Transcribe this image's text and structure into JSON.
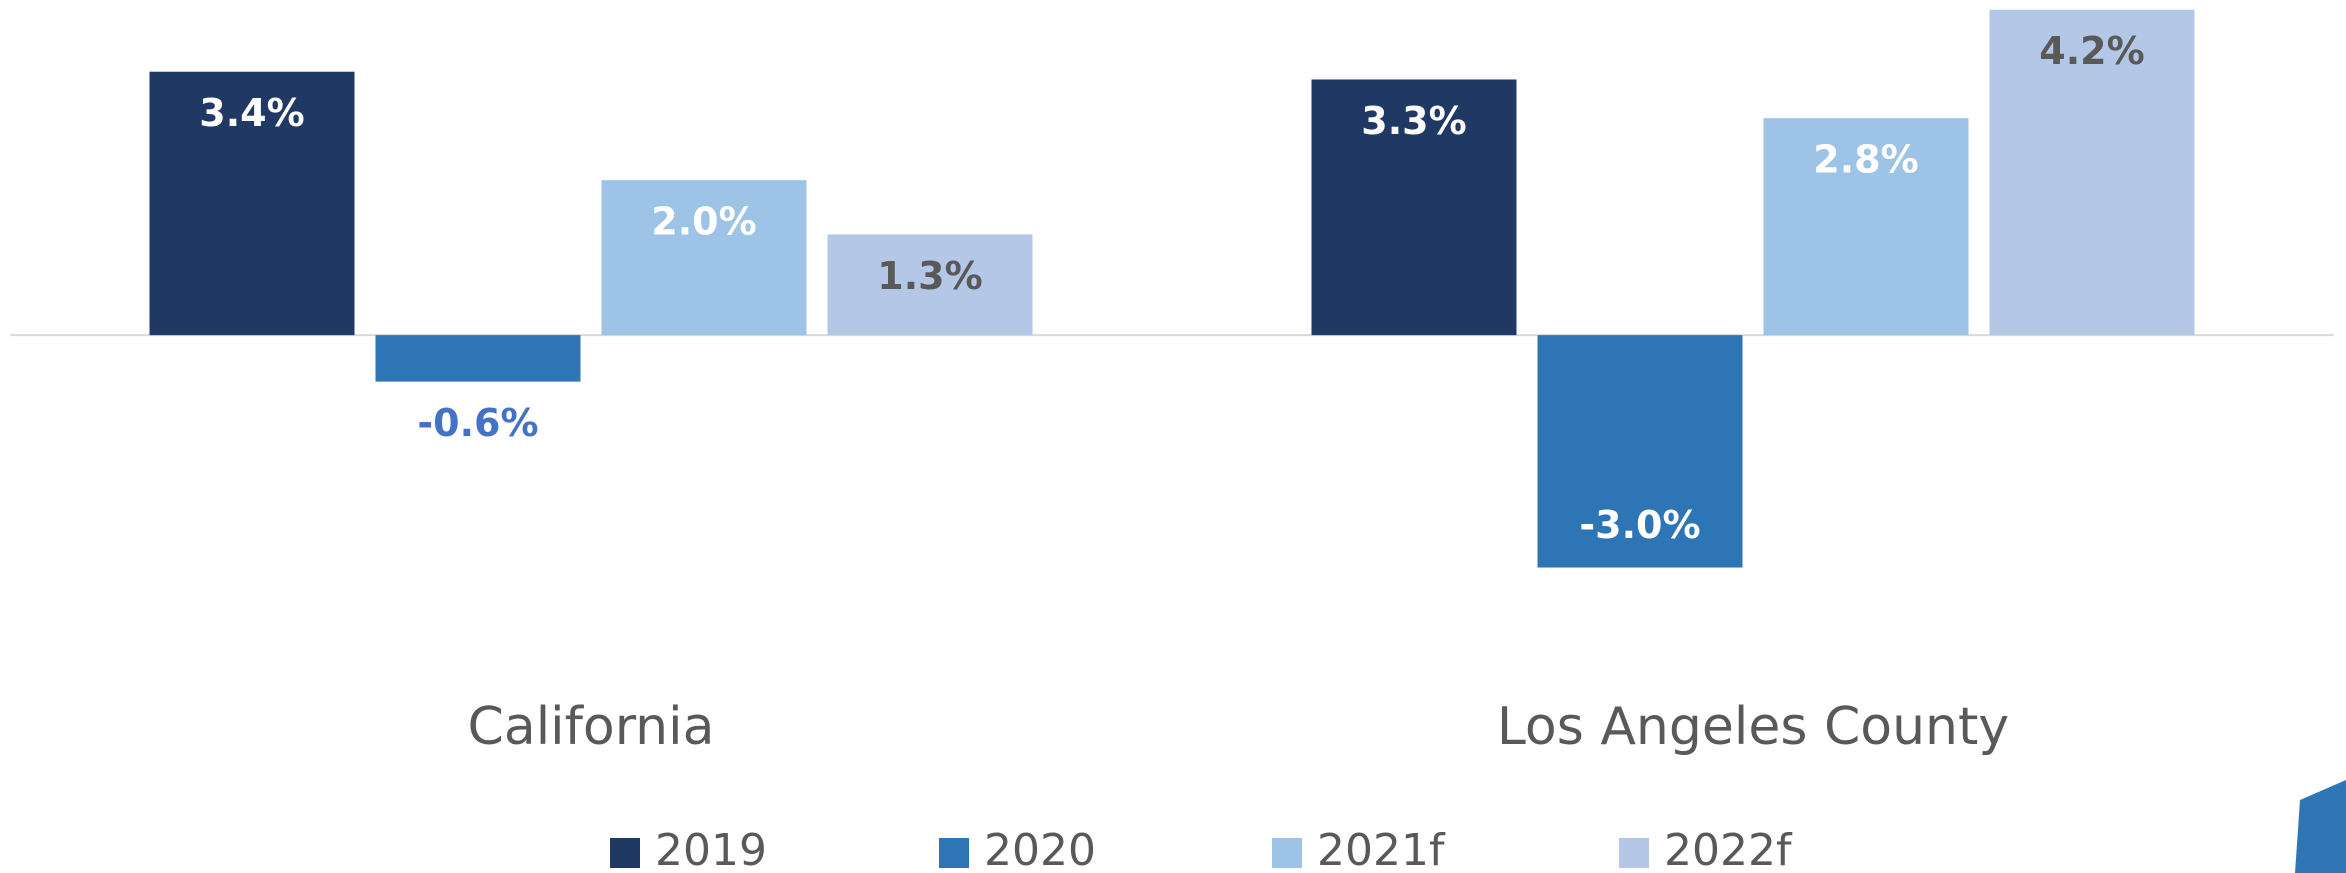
{
  "chart_data": {
    "type": "bar",
    "categories": [
      "California",
      "Los Angeles County"
    ],
    "series": [
      {
        "name": "2019",
        "color": "#203864",
        "values": [
          3.4,
          3.3
        ],
        "value_labels": [
          "3.4%",
          "3.3%"
        ]
      },
      {
        "name": "2020",
        "color": "#2e75b6",
        "values": [
          -0.6,
          -3.0
        ],
        "value_labels": [
          "-0.6%",
          "-3.0%"
        ]
      },
      {
        "name": "2021f",
        "color": "#9dc3e6",
        "values": [
          2.0,
          2.8
        ],
        "value_labels": [
          "2.0%",
          "2.8%"
        ]
      },
      {
        "name": "2022f",
        "color": "#b4c7e7",
        "values": [
          1.3,
          4.2
        ],
        "value_labels": [
          "1.3%",
          "4.2%"
        ]
      }
    ],
    "ylim": [
      -4,
      4.3
    ],
    "legend": "bottom"
  }
}
